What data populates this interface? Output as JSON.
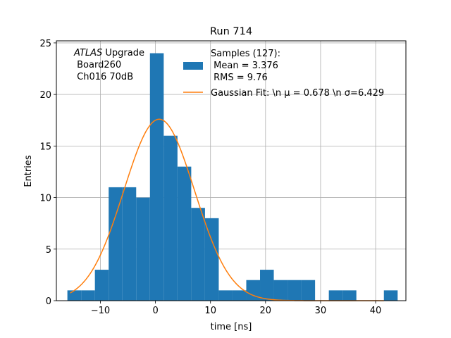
{
  "chart_data": {
    "type": "bar",
    "title": "Run 714",
    "xlabel": "time [ns]",
    "ylabel": "Entries",
    "xlim": [
      -18,
      45.5
    ],
    "ylim": [
      0,
      25.2
    ],
    "x_ticks": [
      -10,
      0,
      10,
      20,
      30,
      40
    ],
    "x_tick_labels": [
      "−10",
      "0",
      "10",
      "20",
      "30",
      "40"
    ],
    "y_ticks": [
      0,
      5,
      10,
      15,
      20,
      25
    ],
    "y_tick_labels": [
      "0",
      "5",
      "10",
      "15",
      "20",
      "25"
    ],
    "grid": true,
    "bar_color": "#1f77b4",
    "fit_color": "#ff7f0e",
    "histogram": {
      "bin_edges": [
        -16.0,
        -13.5,
        -11.0,
        -8.5,
        -6.0,
        -3.5,
        -1.0,
        1.5,
        4.0,
        6.5,
        9.0,
        11.5,
        14.0,
        16.5,
        19.0,
        21.5,
        24.0,
        26.5,
        29.0,
        31.5,
        34.0,
        36.5,
        39.0,
        41.5
      ],
      "counts": [
        1,
        1,
        3,
        11,
        11,
        10,
        24,
        16,
        13,
        9,
        8,
        1,
        1,
        2,
        3,
        2,
        2,
        2,
        0,
        1,
        1,
        0,
        0,
        1
      ],
      "bin_edges_note": ""
    },
    "fit": {
      "amplitude": 17.6,
      "mu": 0.678,
      "sigma": 6.429,
      "x_range": [
        -15.5,
        41.5
      ]
    },
    "legend": {
      "placement": "top-right",
      "samples_lines": [
        "Samples (127):",
        " Mean = 3.376",
        " RMS = 9.76"
      ],
      "fit_label": "Gaussian Fit: \\n μ = 0.678 \\n σ=6.429"
    },
    "annotation": {
      "italic": "ATLAS",
      "rest": " Upgrade",
      "line2": " Board260",
      "line3": " Ch016 70dB"
    }
  }
}
